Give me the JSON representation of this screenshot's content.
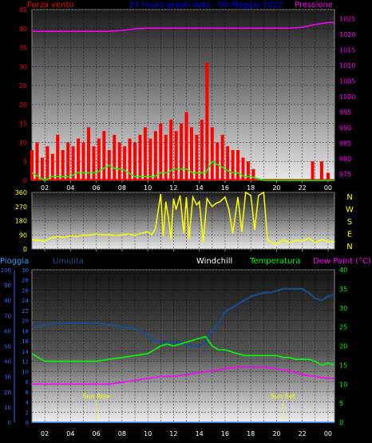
{
  "header": {
    "left_title": "Forza vento",
    "center_title": "24 hours graph data - 09 Maggio 2022",
    "right_title": "Pressione"
  },
  "colors": {
    "wind": "#ff0000",
    "gust": "#00ff00",
    "pressure": "#ff00ff",
    "direction": "#ffff00",
    "rain": "#3399ff",
    "humidity": "#1a4d8c",
    "windchill": "#ffffff",
    "temperature": "#00ff00",
    "dewpoint": "#ff00ff",
    "axis_left": "#ff0000",
    "axis_right": "#ff00ff",
    "axis_blue": "#3366ff",
    "axis_green": "#00ff00",
    "axis_yellow": "#ffff00",
    "label_blue": "#0000ff",
    "label_white": "#ffffff",
    "grid": "#000000"
  },
  "x_axis": {
    "tick_labels": [
      "02",
      "04",
      "06",
      "08",
      "10",
      "12",
      "14",
      "16",
      "18",
      "20",
      "22",
      "00"
    ]
  },
  "chart_data": [
    {
      "type": "line",
      "name": "wind-pressure",
      "x_range": [
        1,
        24.5
      ],
      "left_axis": {
        "label": "Forza vento",
        "ticks": [
          0,
          5,
          10,
          15,
          20,
          25,
          30,
          35,
          40,
          45
        ],
        "ylim": [
          0,
          45
        ]
      },
      "right_axis": {
        "label": "Pressione",
        "ticks": [
          975,
          980,
          985,
          990,
          995,
          1000,
          1005,
          1010,
          1015,
          1020,
          1025
        ],
        "ylim": [
          973,
          1028
        ]
      },
      "series": [
        {
          "key": "pressure",
          "axis": "right",
          "x": [
            1,
            2,
            3,
            4,
            5,
            6,
            7,
            8,
            9,
            10,
            11,
            12,
            13,
            14,
            15,
            16,
            17,
            18,
            19,
            20,
            21,
            22,
            23,
            24,
            24.5
          ],
          "values": [
            1021,
            1021,
            1021,
            1021,
            1021,
            1021,
            1021,
            1021.3,
            1021.8,
            1022,
            1022,
            1022,
            1022,
            1022,
            1022,
            1022,
            1022,
            1022,
            1022,
            1022,
            1022,
            1022.3,
            1023.2,
            1023.8,
            1023.8
          ]
        },
        {
          "key": "gust",
          "axis": "left",
          "x": [
            1,
            1.5,
            2,
            2.5,
            3,
            3.5,
            4,
            4.5,
            5,
            5.5,
            6,
            6.5,
            7,
            7.5,
            8,
            8.5,
            9,
            9.5,
            10,
            10.5,
            11,
            11.5,
            12,
            12.5,
            13,
            13.5,
            14,
            14.5,
            15,
            15.5,
            16,
            16.5,
            17,
            17.5,
            18,
            19,
            20,
            21,
            22,
            23,
            24,
            24.5
          ],
          "values": [
            2,
            1,
            0,
            1,
            1,
            1,
            1,
            2,
            2,
            2,
            2,
            3,
            4,
            3,
            3,
            2,
            1,
            1,
            1,
            1,
            2,
            2,
            3,
            3,
            3,
            2,
            2,
            2,
            5,
            4,
            3,
            2,
            2,
            1,
            1,
            0,
            0,
            0,
            0,
            0,
            0,
            0
          ]
        }
      ],
      "wind_bars": {
        "key": "wind",
        "x": [
          1.0,
          1.4,
          1.8,
          2.2,
          2.6,
          3.0,
          3.4,
          3.8,
          4.2,
          4.6,
          5.0,
          5.4,
          5.8,
          6.2,
          6.6,
          7.0,
          7.4,
          7.8,
          8.2,
          8.6,
          9.0,
          9.4,
          9.8,
          10.2,
          10.6,
          11.0,
          11.4,
          11.8,
          12.2,
          12.6,
          13.0,
          13.4,
          13.8,
          14.2,
          14.6,
          15.0,
          15.4,
          15.8,
          16.2,
          16.6,
          17.0,
          17.4,
          17.8,
          18.2,
          22.8,
          23.5,
          24.0
        ],
        "values": [
          8,
          10,
          6,
          9,
          7,
          12,
          8,
          10,
          9,
          11,
          10,
          14,
          9,
          11,
          13,
          8,
          12,
          10,
          9,
          11,
          10,
          12,
          14,
          11,
          13,
          15,
          12,
          16,
          13,
          15,
          18,
          14,
          12,
          16,
          31,
          14,
          10,
          12,
          9,
          8,
          8,
          6,
          5,
          3,
          5,
          5,
          2
        ]
      }
    },
    {
      "type": "line",
      "name": "wind-direction",
      "x_range": [
        1,
        24.5
      ],
      "left_axis": {
        "ticks": [
          0,
          90,
          180,
          270,
          360
        ],
        "ylim": [
          0,
          360
        ]
      },
      "right_axis": {
        "ticks": [
          "N",
          "W",
          "S",
          "E",
          "N"
        ]
      },
      "series": [
        {
          "key": "direction",
          "x": [
            1,
            1.5,
            2,
            2.5,
            3,
            3.5,
            4,
            4.5,
            5,
            5.5,
            6,
            6.5,
            7,
            7.5,
            8,
            8.5,
            9,
            9.5,
            10,
            10.3,
            10.6,
            11,
            11.2,
            11.4,
            11.6,
            11.8,
            12,
            12.2,
            12.5,
            12.8,
            13,
            13.2,
            13.5,
            13.8,
            14,
            14.3,
            14.6,
            15,
            15.3,
            15.6,
            16,
            16.3,
            16.6,
            17,
            17.3,
            17.6,
            18,
            18.3,
            18.6,
            19,
            19.3,
            19.6,
            20,
            20.5,
            21,
            21.5,
            22,
            22.5,
            23,
            23.5,
            24,
            24.5
          ],
          "values": [
            60,
            55,
            50,
            70,
            80,
            75,
            85,
            80,
            90,
            88,
            95,
            90,
            92,
            85,
            90,
            95,
            88,
            100,
            110,
            90,
            130,
            350,
            80,
            300,
            200,
            60,
            320,
            250,
            340,
            100,
            330,
            60,
            330,
            280,
            300,
            40,
            320,
            270,
            290,
            300,
            330,
            250,
            100,
            330,
            110,
            360,
            340,
            120,
            340,
            360,
            60,
            40,
            30,
            60,
            40,
            55,
            50,
            70,
            40,
            60,
            50,
            45
          ]
        }
      ]
    },
    {
      "type": "line",
      "name": "temperature-humidity",
      "x_range": [
        1,
        24.5
      ],
      "legend": [
        "Pioggia",
        "Umidita",
        "Windchill",
        "Temperatura",
        "Dew Point (°C)"
      ],
      "left_axis_rain": {
        "label": "Pioggia",
        "ticks": [
          0,
          10,
          20,
          30,
          40,
          50,
          60,
          70,
          80,
          90,
          100
        ],
        "ylim": [
          0,
          100
        ]
      },
      "left_axis_humidity": {
        "label": "Umidita",
        "ticks": [
          0,
          2,
          4,
          6,
          8,
          10,
          12,
          14,
          16,
          18,
          20,
          22,
          24,
          26,
          28,
          30
        ],
        "ylim": [
          0,
          30
        ]
      },
      "right_axis": {
        "label": "Dew Point (°C)",
        "ticks": [
          0,
          5,
          10,
          15,
          20,
          25,
          30,
          35,
          40
        ],
        "ylim": [
          0,
          40
        ]
      },
      "annotations": [
        {
          "text": "Sun Rise",
          "x": 6.0
        },
        {
          "text": "Sun Set",
          "x": 20.5
        }
      ],
      "series": [
        {
          "key": "rain",
          "axis": "rain",
          "x": [
            1,
            24.5
          ],
          "values": [
            0,
            0
          ]
        },
        {
          "key": "humidity",
          "axis": "right",
          "x": [
            1,
            2,
            3,
            4,
            5,
            6,
            7,
            8,
            9,
            10,
            10.5,
            11,
            11.5,
            12,
            12.5,
            13,
            13.5,
            14,
            14.5,
            15,
            15.5,
            16,
            16.5,
            17,
            17.5,
            18,
            18.5,
            19,
            19.5,
            20,
            20.5,
            21,
            21.5,
            22,
            22.5,
            23,
            23.5,
            24,
            24.5
          ],
          "values": [
            25,
            25.5,
            26,
            26,
            26,
            26,
            25.5,
            25,
            24.5,
            23,
            21.5,
            21,
            21,
            21,
            21,
            20.5,
            20,
            20,
            21,
            24,
            26,
            29,
            30,
            31,
            32,
            33,
            33.5,
            34,
            34,
            34.5,
            35,
            35,
            35,
            35,
            34,
            32.5,
            32,
            33,
            33.5
          ]
        },
        {
          "key": "temperature",
          "axis": "right",
          "x": [
            1,
            2,
            3,
            4,
            5,
            6,
            7,
            8,
            9,
            10,
            10.5,
            11,
            11.5,
            12,
            12.5,
            13,
            13.5,
            14,
            14.5,
            15,
            15.5,
            16,
            16.5,
            17,
            17.5,
            18,
            18.5,
            19,
            19.5,
            20,
            20.5,
            21,
            21.5,
            22,
            22.5,
            23,
            23.5,
            24,
            24.5
          ],
          "values": [
            18,
            16,
            16,
            16,
            16,
            16,
            16.5,
            17,
            17.5,
            18,
            19,
            20,
            20.5,
            20,
            20.5,
            21,
            21.5,
            22,
            22.5,
            20,
            19,
            19,
            18.5,
            18,
            17.5,
            17.5,
            17.5,
            17.5,
            17.5,
            17.5,
            17,
            17,
            16.5,
            16.5,
            16.5,
            16,
            15,
            15.5,
            15
          ]
        },
        {
          "key": "dewpoint",
          "axis": "right",
          "x": [
            1,
            2,
            3,
            4,
            5,
            6,
            7,
            8,
            9,
            10,
            11,
            12,
            13,
            14,
            15,
            16,
            17,
            18,
            19,
            20,
            21,
            22,
            23,
            24,
            24.5
          ],
          "values": [
            10,
            10,
            10,
            10,
            10,
            10,
            10,
            10.5,
            11,
            11.5,
            12,
            12,
            12.5,
            13,
            13.5,
            14,
            14.5,
            14.5,
            14.5,
            14,
            13.5,
            12.5,
            12,
            11.5,
            11.5
          ]
        }
      ]
    }
  ]
}
